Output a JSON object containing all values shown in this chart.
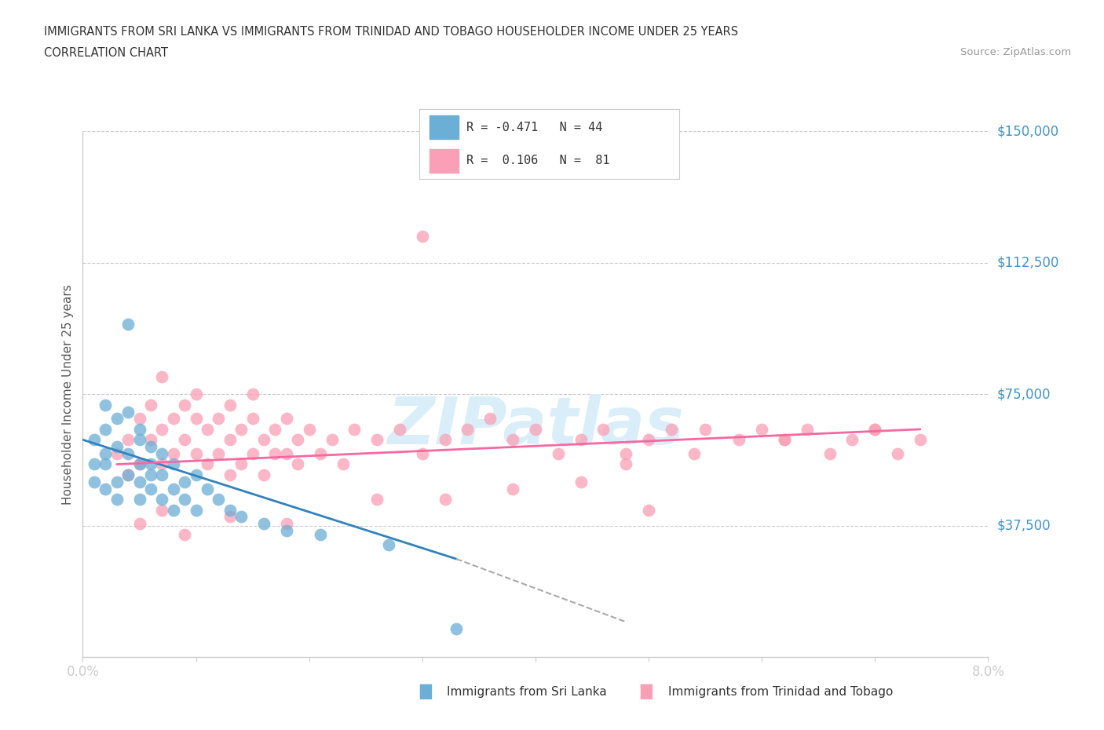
{
  "title_line1": "IMMIGRANTS FROM SRI LANKA VS IMMIGRANTS FROM TRINIDAD AND TOBAGO HOUSEHOLDER INCOME UNDER 25 YEARS",
  "title_line2": "CORRELATION CHART",
  "source_text": "Source: ZipAtlas.com",
  "ylabel": "Householder Income Under 25 years",
  "xmin": 0.0,
  "xmax": 0.08,
  "ymin": 0,
  "ymax": 150000,
  "yticks": [
    0,
    37500,
    75000,
    112500,
    150000
  ],
  "ytick_labels": [
    "",
    "$37,500",
    "$75,000",
    "$112,500",
    "$150,000"
  ],
  "color_sri_lanka": "#6baed6",
  "color_trinidad": "#fa9fb5",
  "color_trend_sri_lanka": "#3182bd",
  "color_trend_trinidad": "#f768a1",
  "color_axis_labels": "#4393c3",
  "background_color": "#ffffff",
  "watermark_color": "#daeefa",
  "sri_lanka_x": [
    0.001,
    0.001,
    0.001,
    0.002,
    0.002,
    0.002,
    0.002,
    0.002,
    0.003,
    0.003,
    0.003,
    0.003,
    0.004,
    0.004,
    0.004,
    0.004,
    0.005,
    0.005,
    0.005,
    0.005,
    0.005,
    0.006,
    0.006,
    0.006,
    0.006,
    0.007,
    0.007,
    0.007,
    0.008,
    0.008,
    0.008,
    0.009,
    0.009,
    0.01,
    0.01,
    0.011,
    0.012,
    0.013,
    0.014,
    0.016,
    0.018,
    0.021,
    0.027,
    0.033
  ],
  "sri_lanka_y": [
    55000,
    62000,
    50000,
    58000,
    65000,
    72000,
    48000,
    55000,
    60000,
    68000,
    50000,
    45000,
    95000,
    70000,
    58000,
    52000,
    65000,
    55000,
    50000,
    62000,
    45000,
    60000,
    55000,
    48000,
    52000,
    58000,
    52000,
    45000,
    55000,
    48000,
    42000,
    50000,
    45000,
    52000,
    42000,
    48000,
    45000,
    42000,
    40000,
    38000,
    36000,
    35000,
    32000,
    8000
  ],
  "trinidad_x": [
    0.003,
    0.004,
    0.004,
    0.005,
    0.005,
    0.006,
    0.006,
    0.007,
    0.007,
    0.007,
    0.008,
    0.008,
    0.009,
    0.009,
    0.01,
    0.01,
    0.01,
    0.011,
    0.011,
    0.012,
    0.012,
    0.013,
    0.013,
    0.013,
    0.014,
    0.014,
    0.015,
    0.015,
    0.015,
    0.016,
    0.016,
    0.017,
    0.017,
    0.018,
    0.018,
    0.019,
    0.019,
    0.02,
    0.021,
    0.022,
    0.023,
    0.024,
    0.026,
    0.028,
    0.03,
    0.03,
    0.032,
    0.034,
    0.036,
    0.038,
    0.04,
    0.042,
    0.044,
    0.046,
    0.048,
    0.05,
    0.052,
    0.054,
    0.055,
    0.058,
    0.06,
    0.062,
    0.064,
    0.066,
    0.068,
    0.07,
    0.072,
    0.074,
    0.032,
    0.044,
    0.05,
    0.038,
    0.026,
    0.018,
    0.013,
    0.009,
    0.007,
    0.005,
    0.048,
    0.062,
    0.07
  ],
  "trinidad_y": [
    58000,
    62000,
    52000,
    68000,
    55000,
    72000,
    62000,
    80000,
    65000,
    55000,
    68000,
    58000,
    72000,
    62000,
    68000,
    58000,
    75000,
    65000,
    55000,
    68000,
    58000,
    72000,
    62000,
    52000,
    65000,
    55000,
    68000,
    58000,
    75000,
    62000,
    52000,
    65000,
    58000,
    68000,
    58000,
    62000,
    55000,
    65000,
    58000,
    62000,
    55000,
    65000,
    62000,
    65000,
    58000,
    120000,
    62000,
    65000,
    68000,
    62000,
    65000,
    58000,
    62000,
    65000,
    58000,
    62000,
    65000,
    58000,
    65000,
    62000,
    65000,
    62000,
    65000,
    58000,
    62000,
    65000,
    58000,
    62000,
    45000,
    50000,
    42000,
    48000,
    45000,
    38000,
    40000,
    35000,
    42000,
    38000,
    55000,
    62000,
    65000
  ],
  "sl_trend_x0": 0.0,
  "sl_trend_y0": 62000,
  "sl_trend_x1": 0.033,
  "sl_trend_y1": 28000,
  "sl_trend_ext_x1": 0.048,
  "sl_trend_ext_y1": 10000,
  "tt_trend_x0": 0.003,
  "tt_trend_y0": 55000,
  "tt_trend_x1": 0.074,
  "tt_trend_y1": 65000
}
